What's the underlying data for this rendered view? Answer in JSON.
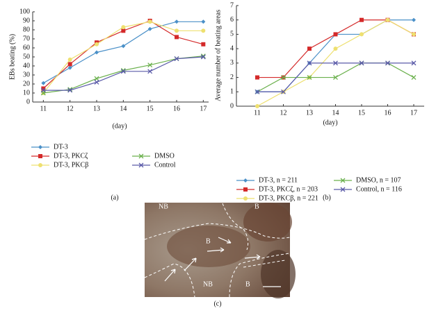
{
  "chart_data": [
    {
      "type": "line",
      "panel": "(a)",
      "xlabel": "(day)",
      "ylabel": "EBs beating (%)",
      "x": [
        11,
        12,
        13,
        14,
        15,
        16,
        17
      ],
      "xlim": [
        10.6,
        17.2
      ],
      "xticks": [
        11,
        12,
        13,
        14,
        15,
        16,
        17
      ],
      "ylim": [
        0,
        100
      ],
      "yticks": [
        0,
        10,
        20,
        30,
        40,
        50,
        60,
        70,
        80,
        90,
        100
      ],
      "series": [
        {
          "name": "DT-3",
          "color": "#4a90c8",
          "marker": "diamond",
          "values": [
            21,
            38,
            55,
            62,
            81,
            89,
            89
          ]
        },
        {
          "name": "DT-3, PKCζ",
          "color": "#d42a2a",
          "marker": "square",
          "values": [
            15,
            42,
            66,
            79,
            90,
            72,
            64
          ]
        },
        {
          "name": "DT-3, PKCβ",
          "color": "#eee070",
          "marker": "circle",
          "values": [
            10,
            47,
            64,
            83,
            89,
            79,
            79
          ]
        },
        {
          "name": "DMSO",
          "color": "#6ab04c",
          "marker": "x",
          "values": [
            10,
            14,
            26,
            35,
            41,
            48,
            51
          ]
        },
        {
          "name": "Control",
          "color": "#5a5aa8",
          "marker": "x",
          "values": [
            13,
            13,
            22,
            34,
            34,
            48,
            50
          ]
        }
      ]
    },
    {
      "type": "line",
      "panel": "(b)",
      "xlabel": "(day)",
      "ylabel": "Average number of beating areas",
      "x": [
        11,
        12,
        13,
        14,
        15,
        16,
        17
      ],
      "xlim": [
        10.2,
        17.4
      ],
      "xticks": [
        11,
        12,
        13,
        14,
        15,
        16,
        17
      ],
      "ylim": [
        0,
        7
      ],
      "yticks": [
        0,
        1,
        2,
        3,
        4,
        5,
        6,
        7
      ],
      "series": [
        {
          "name": "DT-3, n = 211",
          "color": "#4a90c8",
          "marker": "diamond",
          "values": [
            1,
            1,
            3,
            5,
            5,
            6,
            6
          ]
        },
        {
          "name": "DT-3, PKCζ, n = 203",
          "color": "#d42a2a",
          "marker": "square",
          "values": [
            2,
            2,
            4,
            5,
            6,
            6,
            5
          ]
        },
        {
          "name": "DT-3, PKCβ, n = 221",
          "color": "#eee070",
          "marker": "circle",
          "values": [
            0,
            1,
            2,
            4,
            5,
            6,
            5
          ]
        },
        {
          "name": "DMSO, n = 107",
          "color": "#6ab04c",
          "marker": "x",
          "values": [
            1,
            2,
            2,
            2,
            3,
            3,
            2
          ]
        },
        {
          "name": "Control, n = 116",
          "color": "#5a5aa8",
          "marker": "x",
          "values": [
            1,
            1,
            3,
            3,
            3,
            3,
            3
          ]
        }
      ]
    }
  ],
  "image": {
    "panel": "(c)",
    "labels": [
      "NB",
      "B",
      "B",
      "NB",
      "B"
    ]
  }
}
